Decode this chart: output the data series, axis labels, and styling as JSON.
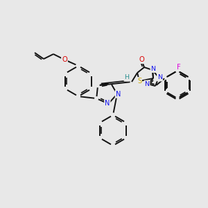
{
  "bg": "#e8e8e8",
  "lw": 1.4,
  "atom_colors": {
    "N": "#1010ee",
    "O": "#dd0000",
    "S": "#ccaa00",
    "F": "#dd00dd",
    "H": "#2a9090",
    "C": "#111111"
  }
}
